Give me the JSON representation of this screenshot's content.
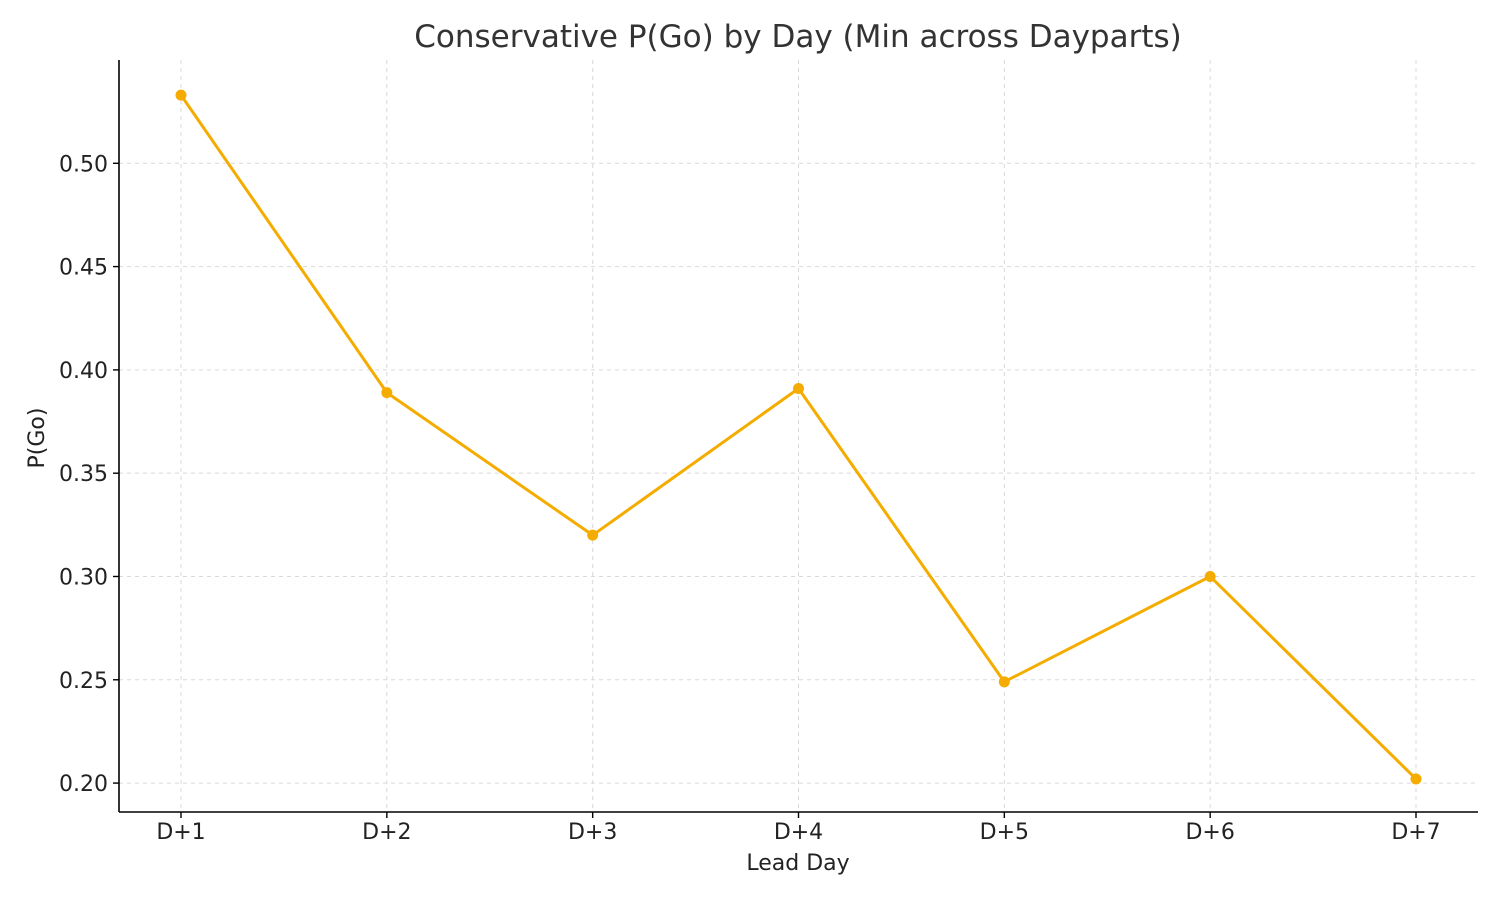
{
  "chart_data": {
    "type": "line",
    "title": "Conservative P(Go) by Day (Min across Dayparts)",
    "xlabel": "Lead Day",
    "ylabel": "P(Go)",
    "categories": [
      "D+1",
      "D+2",
      "D+3",
      "D+4",
      "D+5",
      "D+6",
      "D+7"
    ],
    "series": [
      {
        "name": "",
        "values": [
          0.533,
          0.389,
          0.32,
          0.391,
          0.249,
          0.3,
          0.202
        ],
        "color": "#f5ac00"
      }
    ],
    "yticks": [
      "0.20",
      "0.25",
      "0.30",
      "0.35",
      "0.40",
      "0.45",
      "0.50"
    ],
    "ylim": [
      0.186,
      0.55
    ],
    "grid": true,
    "legend": "none"
  }
}
